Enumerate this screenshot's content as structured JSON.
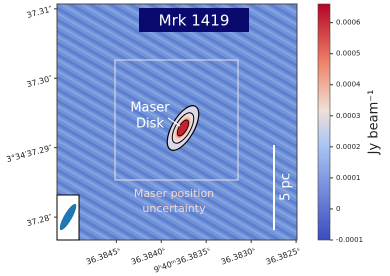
{
  "chart_data": {
    "type": "image",
    "title": "Mrk 1419",
    "xlim": [
      36.38516,
      36.38249
    ],
    "xticks": [
      {
        "value": 36.3845,
        "label": "36.3845ˢ"
      },
      {
        "value": 36.384,
        "label": "36.3840ˢ"
      },
      {
        "value": 36.3835,
        "label": "9ʰ40ᵐ36.3835ˢ"
      },
      {
        "value": 36.383,
        "label": "36.3830ˢ"
      },
      {
        "value": 36.3825,
        "label": "36.3825ˢ"
      }
    ],
    "ylim": [
      37.2767,
      37.3107
    ],
    "yticks": [
      {
        "value": 37.28,
        "label": "37.28″"
      },
      {
        "value": 37.29,
        "label": "3°34′37.29″"
      },
      {
        "value": 37.3,
        "label": "37.30″"
      },
      {
        "value": 37.31,
        "label": "37.31″"
      }
    ],
    "disk_label": [
      "Maser",
      "Disk"
    ],
    "uncertainty_label": [
      "Maser position",
      "uncertainty"
    ],
    "scale_bar_label": "5 pc",
    "colorbar": {
      "label": "Jy beam⁻¹",
      "lim": [
        -0.0001,
        0.00066
      ],
      "ticks": [
        -0.0001,
        0,
        0.0001,
        0.0002,
        0.0003,
        0.0004,
        0.0005,
        0.0006
      ]
    }
  }
}
